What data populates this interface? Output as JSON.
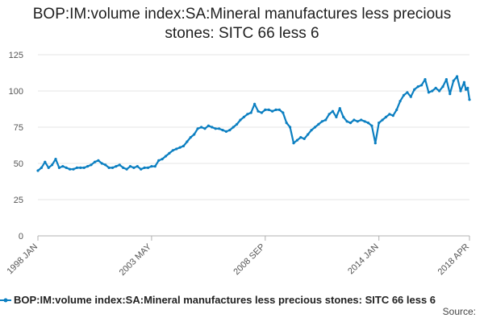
{
  "chart_data": {
    "type": "line",
    "title_lines": [
      "BOP:IM:volume index:SA:Mineral manufactures less precious",
      "stones: SITC 66 less 6"
    ],
    "xlabel": "",
    "ylabel": "",
    "ylim": [
      0,
      125
    ],
    "y_ticks": [
      0,
      25,
      50,
      75,
      100,
      125
    ],
    "x_start": "1998-01",
    "x_end": "2018-04",
    "x_ticks": [
      {
        "date": "1998-01",
        "label": "1998 JAN"
      },
      {
        "date": "2003-05",
        "label": "2003 MAY"
      },
      {
        "date": "2008-09",
        "label": "2008 SEP"
      },
      {
        "date": "2014-01",
        "label": "2014 JAN"
      },
      {
        "date": "2018-04",
        "label": "2018 APR"
      }
    ],
    "grid": true,
    "legend_position": "bottom",
    "color": "#0b7fc1",
    "series": [
      {
        "name": "BOP:IM:volume index:SA:Mineral manufactures less precious stones: SITC 66 less 6",
        "points": [
          [
            "1998-01",
            45
          ],
          [
            "1998-03",
            47
          ],
          [
            "1998-05",
            51
          ],
          [
            "1998-07",
            47
          ],
          [
            "1998-09",
            49
          ],
          [
            "1998-11",
            53
          ],
          [
            "1999-01",
            47
          ],
          [
            "1999-03",
            48
          ],
          [
            "1999-05",
            47
          ],
          [
            "1999-07",
            46
          ],
          [
            "1999-09",
            46
          ],
          [
            "1999-11",
            47
          ],
          [
            "2000-01",
            47
          ],
          [
            "2000-03",
            47
          ],
          [
            "2000-05",
            48
          ],
          [
            "2000-07",
            49
          ],
          [
            "2000-09",
            51
          ],
          [
            "2000-11",
            52
          ],
          [
            "2001-01",
            50
          ],
          [
            "2001-03",
            49
          ],
          [
            "2001-05",
            47
          ],
          [
            "2001-07",
            47
          ],
          [
            "2001-09",
            48
          ],
          [
            "2001-11",
            49
          ],
          [
            "2002-01",
            47
          ],
          [
            "2002-03",
            46
          ],
          [
            "2002-05",
            48
          ],
          [
            "2002-07",
            47
          ],
          [
            "2002-09",
            48
          ],
          [
            "2002-11",
            46
          ],
          [
            "2003-01",
            47
          ],
          [
            "2003-03",
            47
          ],
          [
            "2003-05",
            48
          ],
          [
            "2003-07",
            48
          ],
          [
            "2003-09",
            52
          ],
          [
            "2003-11",
            53
          ],
          [
            "2004-01",
            55
          ],
          [
            "2004-03",
            57
          ],
          [
            "2004-05",
            59
          ],
          [
            "2004-07",
            60
          ],
          [
            "2004-09",
            61
          ],
          [
            "2004-11",
            62
          ],
          [
            "2005-01",
            65
          ],
          [
            "2005-03",
            68
          ],
          [
            "2005-05",
            70
          ],
          [
            "2005-07",
            74
          ],
          [
            "2005-09",
            75
          ],
          [
            "2005-11",
            74
          ],
          [
            "2006-01",
            76
          ],
          [
            "2006-03",
            75
          ],
          [
            "2006-05",
            74
          ],
          [
            "2006-07",
            74
          ],
          [
            "2006-09",
            73
          ],
          [
            "2006-11",
            72
          ],
          [
            "2007-01",
            73
          ],
          [
            "2007-03",
            75
          ],
          [
            "2007-05",
            77
          ],
          [
            "2007-07",
            80
          ],
          [
            "2007-09",
            82
          ],
          [
            "2007-11",
            84
          ],
          [
            "2008-01",
            85
          ],
          [
            "2008-03",
            91
          ],
          [
            "2008-05",
            86
          ],
          [
            "2008-07",
            85
          ],
          [
            "2008-09",
            87
          ],
          [
            "2008-11",
            87
          ],
          [
            "2009-01",
            86
          ],
          [
            "2009-03",
            87
          ],
          [
            "2009-05",
            87
          ],
          [
            "2009-07",
            85
          ],
          [
            "2009-09",
            78
          ],
          [
            "2009-11",
            75
          ],
          [
            "2010-01",
            64
          ],
          [
            "2010-03",
            66
          ],
          [
            "2010-05",
            68
          ],
          [
            "2010-07",
            67
          ],
          [
            "2010-09",
            70
          ],
          [
            "2010-11",
            73
          ],
          [
            "2011-01",
            75
          ],
          [
            "2011-03",
            77
          ],
          [
            "2011-05",
            79
          ],
          [
            "2011-07",
            80
          ],
          [
            "2011-09",
            84
          ],
          [
            "2011-11",
            86
          ],
          [
            "2012-01",
            82
          ],
          [
            "2012-03",
            88
          ],
          [
            "2012-05",
            82
          ],
          [
            "2012-07",
            79
          ],
          [
            "2012-09",
            78
          ],
          [
            "2012-11",
            80
          ],
          [
            "2013-01",
            79
          ],
          [
            "2013-03",
            80
          ],
          [
            "2013-05",
            79
          ],
          [
            "2013-07",
            78
          ],
          [
            "2013-09",
            76
          ],
          [
            "2013-11",
            64
          ],
          [
            "2014-01",
            78
          ],
          [
            "2014-03",
            80
          ],
          [
            "2014-05",
            82
          ],
          [
            "2014-07",
            84
          ],
          [
            "2014-09",
            83
          ],
          [
            "2014-11",
            87
          ],
          [
            "2015-01",
            93
          ],
          [
            "2015-03",
            97
          ],
          [
            "2015-05",
            99
          ],
          [
            "2015-07",
            96
          ],
          [
            "2015-09",
            101
          ],
          [
            "2015-11",
            103
          ],
          [
            "2016-01",
            104
          ],
          [
            "2016-03",
            108
          ],
          [
            "2016-05",
            99
          ],
          [
            "2016-07",
            100
          ],
          [
            "2016-09",
            102
          ],
          [
            "2016-11",
            100
          ],
          [
            "2017-01",
            103
          ],
          [
            "2017-03",
            108
          ],
          [
            "2017-05",
            98
          ],
          [
            "2017-07",
            107
          ],
          [
            "2017-09",
            110
          ],
          [
            "2017-11",
            100
          ],
          [
            "2018-01",
            106
          ],
          [
            "2018-02",
            101
          ],
          [
            "2018-03",
            102
          ],
          [
            "2018-04",
            94
          ]
        ]
      }
    ]
  },
  "legend": {
    "label": "BOP:IM:volume index:SA:Mineral manufactures less precious stones: SITC 66 less 6"
  },
  "source": {
    "label": "Source:"
  }
}
